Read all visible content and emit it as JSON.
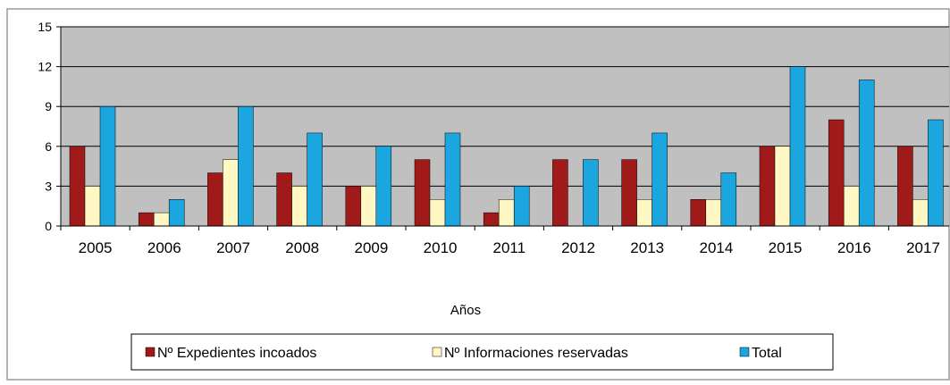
{
  "chart_data": {
    "type": "bar",
    "title": "",
    "xlabel": "Años",
    "ylabel": "",
    "ylim": [
      0,
      15
    ],
    "yticks": [
      0,
      3,
      6,
      9,
      12,
      15
    ],
    "grid": true,
    "legend_position": "bottom",
    "categories": [
      "2005",
      "2006",
      "2007",
      "2008",
      "2009",
      "2010",
      "2011",
      "2012",
      "2013",
      "2014",
      "2015",
      "2016",
      "2017"
    ],
    "series": [
      {
        "name": "Nº Expedientes incoados",
        "color": "#a01a1a",
        "values": [
          6,
          1,
          4,
          4,
          3,
          5,
          1,
          5,
          5,
          2,
          6,
          8,
          6
        ]
      },
      {
        "name": "Nº Informaciones reservadas",
        "color": "#fff8c4",
        "values": [
          3,
          1,
          5,
          3,
          3,
          2,
          2,
          0,
          2,
          2,
          6,
          3,
          2
        ]
      },
      {
        "name": "Total",
        "color": "#1ca6df",
        "values": [
          9,
          2,
          9,
          7,
          6,
          7,
          3,
          5,
          7,
          4,
          12,
          11,
          8
        ]
      }
    ],
    "plot_background": "#c0c0c0"
  }
}
